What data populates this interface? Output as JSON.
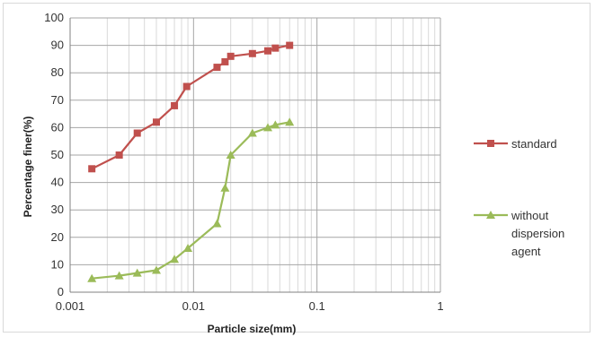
{
  "chart_data": {
    "type": "line",
    "title": "",
    "xlabel": "Particle size(mm)",
    "ylabel": "Percentage finer(%)",
    "xscale": "log",
    "xlim": [
      0.001,
      1
    ],
    "ylim": [
      0,
      100
    ],
    "grid": true,
    "legend_position": "right",
    "x_tick_labels": [
      "0.001",
      "0.01",
      "0.1",
      "1"
    ],
    "y_tick_labels": [
      "0",
      "10",
      "20",
      "30",
      "40",
      "50",
      "60",
      "70",
      "80",
      "90",
      "100"
    ],
    "series": [
      {
        "name": "standard",
        "color": "#c0504d",
        "marker": "square",
        "points": [
          [
            0.0015,
            45
          ],
          [
            0.0025,
            50
          ],
          [
            0.0035,
            58
          ],
          [
            0.005,
            62
          ],
          [
            0.007,
            68
          ],
          [
            0.0088,
            75
          ],
          [
            0.0155,
            82
          ],
          [
            0.018,
            84
          ],
          [
            0.02,
            86
          ],
          [
            0.03,
            87
          ],
          [
            0.04,
            88
          ],
          [
            0.046,
            89
          ],
          [
            0.06,
            90
          ]
        ]
      },
      {
        "name": "without dispersion agent",
        "legend_lines": [
          "without",
          "dispersion",
          "agent"
        ],
        "color": "#9bbb59",
        "marker": "triangle",
        "points": [
          [
            0.0015,
            5
          ],
          [
            0.0025,
            6
          ],
          [
            0.0035,
            7
          ],
          [
            0.005,
            8
          ],
          [
            0.007,
            12
          ],
          [
            0.009,
            16
          ],
          [
            0.0155,
            25
          ],
          [
            0.018,
            38
          ],
          [
            0.02,
            50
          ],
          [
            0.03,
            58
          ],
          [
            0.04,
            60
          ],
          [
            0.046,
            61
          ],
          [
            0.06,
            62
          ]
        ]
      }
    ]
  }
}
